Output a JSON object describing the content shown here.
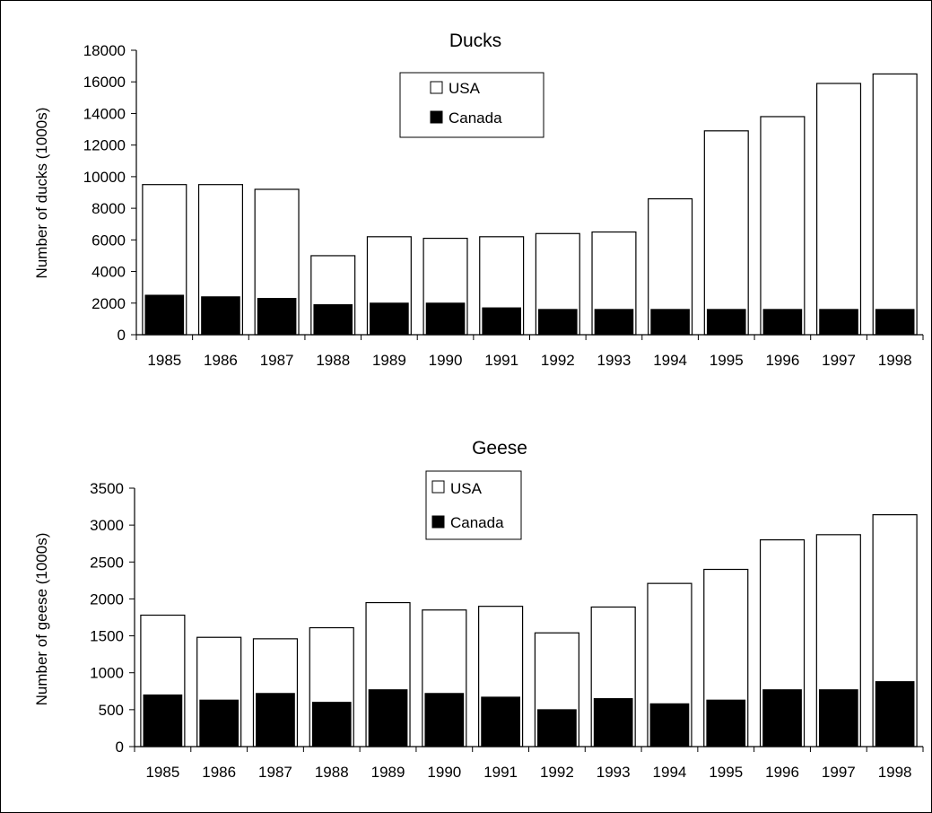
{
  "chart_data": [
    {
      "type": "bar",
      "title": "Ducks",
      "xlabel": "",
      "ylabel": "Number of ducks (1000s)",
      "ylim": [
        0,
        18000
      ],
      "yticks": [
        0,
        2000,
        4000,
        6000,
        8000,
        10000,
        12000,
        14000,
        16000,
        18000
      ],
      "categories": [
        "1985",
        "1986",
        "1987",
        "1988",
        "1989",
        "1990",
        "1991",
        "1992",
        "1993",
        "1994",
        "1995",
        "1996",
        "1997",
        "1998"
      ],
      "series": [
        {
          "name": "USA",
          "color": "#ffffff",
          "values": [
            9500,
            9500,
            9200,
            5000,
            6200,
            6100,
            6200,
            6400,
            6500,
            8600,
            12900,
            13800,
            15900,
            16500
          ]
        },
        {
          "name": "Canada",
          "color": "#000000",
          "values": [
            2500,
            2400,
            2300,
            1900,
            2000,
            2000,
            1700,
            1600,
            1600,
            1600,
            1600,
            1600,
            1600,
            1600
          ]
        }
      ],
      "grid": false,
      "legend": "top-center"
    },
    {
      "type": "bar",
      "title": "Geese",
      "xlabel": "",
      "ylabel": "Number of geese (1000s)",
      "ylim": [
        0,
        3500
      ],
      "yticks": [
        0,
        500,
        1000,
        1500,
        2000,
        2500,
        3000,
        3500
      ],
      "categories": [
        "1985",
        "1986",
        "1987",
        "1988",
        "1989",
        "1990",
        "1991",
        "1992",
        "1993",
        "1994",
        "1995",
        "1996",
        "1997",
        "1998"
      ],
      "series": [
        {
          "name": "USA",
          "color": "#ffffff",
          "values": [
            1780,
            1480,
            1460,
            1610,
            1950,
            1850,
            1900,
            1540,
            1890,
            2210,
            2400,
            2800,
            2870,
            3140
          ]
        },
        {
          "name": "Canada",
          "color": "#000000",
          "values": [
            700,
            630,
            720,
            600,
            770,
            720,
            670,
            500,
            650,
            580,
            630,
            770,
            770,
            880
          ]
        }
      ],
      "grid": false,
      "legend": "top-center"
    }
  ]
}
